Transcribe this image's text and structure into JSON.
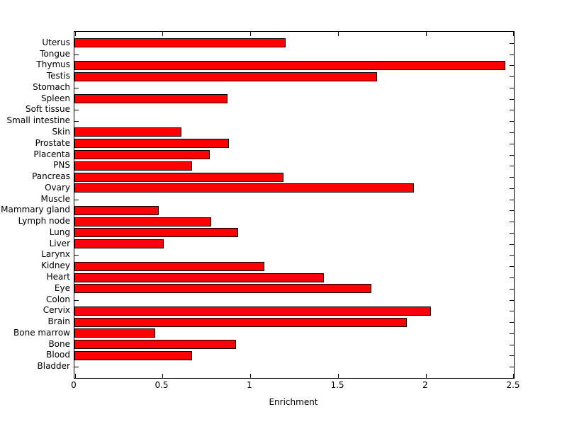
{
  "figure": {
    "background": "#ffffff"
  },
  "chart_data": {
    "type": "bar",
    "orientation": "horizontal",
    "title": "",
    "xlabel": "Enrichment",
    "ylabel": "",
    "xlim": [
      0,
      2.5
    ],
    "xticks": [
      0,
      0.5,
      1,
      1.5,
      2,
      2.5
    ],
    "xtick_labels": [
      "0",
      "0.5",
      "1",
      "1.5",
      "2",
      "2.5"
    ],
    "grid": false,
    "legend": null,
    "bar_color": "#ff0000",
    "bar_edge_color": "#000000",
    "axis_color": "#000000",
    "categories": [
      "Uterus",
      "Tongue",
      "Thymus",
      "Testis",
      "Stomach",
      "Spleen",
      "Soft tissue",
      "Small intestine",
      "Skin",
      "Prostate",
      "Placenta",
      "PNS",
      "Pancreas",
      "Ovary",
      "Muscle",
      "Mammary gland",
      "Lymph node",
      "Lung",
      "Liver",
      "Larynx",
      "Kidney",
      "Heart",
      "Eye",
      "Colon",
      "Cervix",
      "Brain",
      "Bone marrow",
      "Bone",
      "Blood",
      "Bladder"
    ],
    "values": [
      1.2,
      0,
      2.45,
      1.72,
      0,
      0.87,
      0,
      0,
      0.61,
      0.88,
      0.77,
      0.67,
      1.19,
      1.93,
      0,
      0.48,
      0.78,
      0.93,
      0.51,
      0,
      1.08,
      1.42,
      1.69,
      0,
      2.03,
      1.89,
      0.46,
      0.92,
      0.67,
      0
    ]
  }
}
